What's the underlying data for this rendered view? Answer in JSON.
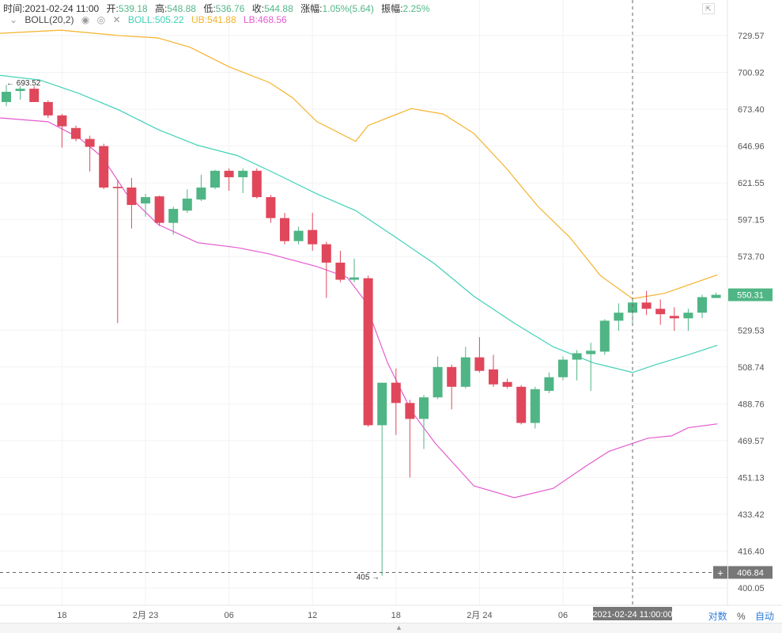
{
  "header": {
    "time_label": "时间:",
    "time": "2021-02-24 11:00",
    "open_label": "开:",
    "open": "539.18",
    "high_label": "高:",
    "high": "548.88",
    "low_label": "低:",
    "low": "536.76",
    "close_label": "收:",
    "close": "544.88",
    "change_label": "涨幅:",
    "change": "1.05%(5.64)",
    "amp_label": "振幅:",
    "amp": "2.25%"
  },
  "indicator": {
    "name": "BOLL(20,2)",
    "boll": "BOLL:505.22",
    "ub": "UB:541.88",
    "lb": "LB:468.56",
    "icons": [
      "chevron-down-icon",
      "eye-icon",
      "settings-icon",
      "close-icon"
    ]
  },
  "bottom_options": {
    "log": "对数",
    "percent": "%",
    "auto": "自动"
  },
  "colors": {
    "up": "#4fb585",
    "down": "#e0475b",
    "boll": "#3fd1b5",
    "ub": "#f5b22a",
    "lb": "#e45bd0"
  },
  "chart_data": {
    "type": "candlestick",
    "y_scale": "log",
    "ylim": [
      400.05,
      729.57
    ],
    "y_ticks": [
      "729.57",
      "700.92",
      "673.40",
      "646.96",
      "621.55",
      "597.15",
      "573.70",
      "529.53",
      "508.74",
      "488.76",
      "469.57",
      "451.13",
      "433.42",
      "416.40",
      "400.05"
    ],
    "x_ticks": [
      {
        "index": 4,
        "label": "18"
      },
      {
        "index": 10,
        "label": "2月 23"
      },
      {
        "index": 16,
        "label": "06"
      },
      {
        "index": 22,
        "label": "12"
      },
      {
        "index": 28,
        "label": "18"
      },
      {
        "index": 34,
        "label": "2月 24"
      },
      {
        "index": 40,
        "label": "06"
      }
    ],
    "crosshair": {
      "index": 45,
      "time_label": "2021-02-24 11:00:00",
      "price": 406.84,
      "price_label": "406.84",
      "plus": "+"
    },
    "last_price": {
      "value": 550.31,
      "label": "550.31"
    },
    "max_marker": {
      "index": 0,
      "value": 693.52,
      "label": "← 693.52"
    },
    "min_marker": {
      "index": 27,
      "value": 405,
      "label": "405 →"
    },
    "candles": [
      [
        678.7,
        691.5,
        675.7,
        686.3
      ],
      [
        686.9,
        690.4,
        680.4,
        688.6
      ],
      [
        688.6,
        690.4,
        678.7,
        678.7
      ],
      [
        678.7,
        680,
        667,
        668.9
      ],
      [
        668.9,
        670,
        645.9,
        661.0
      ],
      [
        659.8,
        661.5,
        650.3,
        652.0
      ],
      [
        652.0,
        654.3,
        629.3,
        646.4
      ],
      [
        646.96,
        648.6,
        617.3,
        618.4
      ],
      [
        618.9,
        623.8,
        533.6,
        618.0
      ],
      [
        618.4,
        624.9,
        591.5,
        606.8
      ],
      [
        607.8,
        614.2,
        599.2,
        612.0
      ],
      [
        612.5,
        613.0,
        593.1,
        595.1
      ],
      [
        595.1,
        605.7,
        587.5,
        604.2
      ],
      [
        603.1,
        617.3,
        601.6,
        611.0
      ],
      [
        610.4,
        627.1,
        609.4,
        618.4
      ],
      [
        618.4,
        630.4,
        617.3,
        629.8
      ],
      [
        629.8,
        631.4,
        616.3,
        625.4
      ],
      [
        625.4,
        631.4,
        614.7,
        629.8
      ],
      [
        629.8,
        631.4,
        611.0,
        612.0
      ],
      [
        612.0,
        613.5,
        595.1,
        598.2
      ],
      [
        598.2,
        601.6,
        581.4,
        583.4
      ],
      [
        583.4,
        592.6,
        581.4,
        590.0
      ],
      [
        590.5,
        601.6,
        577.3,
        581.4
      ],
      [
        581.4,
        583,
        548.4,
        569.9
      ],
      [
        569.9,
        577.3,
        557.9,
        559.4
      ],
      [
        559.4,
        572.3,
        557.9,
        560.8
      ],
      [
        560.3,
        561.8,
        476.7,
        477.5
      ],
      [
        477.5,
        500.1,
        405.4,
        500.1
      ],
      [
        500.1,
        507.9,
        472.5,
        489.2
      ],
      [
        489.2,
        490.9,
        451.1,
        480.8
      ],
      [
        480.8,
        493.5,
        465.3,
        492.2
      ],
      [
        492.2,
        514.6,
        491.3,
        508.7
      ],
      [
        508.7,
        510.1,
        485.8,
        497.9
      ],
      [
        497.9,
        520.0,
        497.0,
        514.1
      ],
      [
        514.1,
        525.5,
        505.7,
        506.6
      ],
      [
        507.4,
        515.5,
        497.9,
        499.2
      ],
      [
        500.5,
        502.3,
        497.0,
        497.9
      ],
      [
        497.9,
        498.8,
        477.9,
        478.7
      ],
      [
        478.7,
        497.9,
        475.8,
        496.6
      ],
      [
        495.7,
        505.7,
        494.4,
        503.1
      ],
      [
        503.1,
        514.6,
        501.4,
        512.8
      ],
      [
        512.8,
        518.2,
        501.4,
        516.4
      ],
      [
        515.9,
        522.3,
        495.7,
        517.8
      ],
      [
        517.3,
        535.9,
        515.5,
        535.0
      ],
      [
        535.0,
        545.2,
        529.1,
        539.7
      ],
      [
        539.7,
        547.5,
        533.6,
        545.7
      ],
      [
        545.7,
        552.7,
        538.3,
        542.0
      ],
      [
        542.0,
        547.5,
        532.7,
        538.8
      ],
      [
        537.8,
        542.9,
        529.1,
        536.4
      ],
      [
        536.4,
        542.0,
        529.1,
        539.7
      ],
      [
        539.7,
        550.3,
        536.4,
        548.9
      ],
      [
        548.4,
        551.6,
        548.4,
        550.3
      ]
    ],
    "series": [
      {
        "name": "UB",
        "points": [
          [
            -0.45,
            731.4
          ],
          [
            3.9,
            733.9
          ],
          [
            8.1,
            729.6
          ],
          [
            10.9,
            727.7
          ],
          [
            13.2,
            720.4
          ],
          [
            16.0,
            705.2
          ],
          [
            18.9,
            693.3
          ],
          [
            20.6,
            681.6
          ],
          [
            22.3,
            664.5
          ],
          [
            25.1,
            650.3
          ],
          [
            26.0,
            661.6
          ],
          [
            29.1,
            673.9
          ],
          [
            31.4,
            669.9
          ],
          [
            33.6,
            655.9
          ],
          [
            35.9,
            631.8
          ],
          [
            38.2,
            605.9
          ],
          [
            40.5,
            585.7
          ],
          [
            42.7,
            561.8
          ],
          [
            45.0,
            548.0
          ],
          [
            47.3,
            551.2
          ],
          [
            51.1,
            562.4
          ]
        ]
      },
      {
        "name": "BOLL",
        "points": [
          [
            -0.45,
            698.7
          ],
          [
            2.4,
            695.2
          ],
          [
            5.2,
            685.2
          ],
          [
            8.1,
            672.8
          ],
          [
            10.9,
            658.7
          ],
          [
            13.75,
            647.5
          ],
          [
            16.6,
            640.3
          ],
          [
            19.4,
            627.6
          ],
          [
            22.3,
            614.2
          ],
          [
            25.1,
            603.1
          ],
          [
            28.0,
            585.7
          ],
          [
            30.8,
            569.0
          ],
          [
            33.6,
            549.4
          ],
          [
            36.5,
            533.6
          ],
          [
            39.3,
            520.0
          ],
          [
            42.2,
            511.0
          ],
          [
            45.0,
            505.7
          ],
          [
            46.7,
            510.1
          ],
          [
            49.0,
            515.5
          ],
          [
            51.1,
            520.9
          ]
        ]
      },
      {
        "name": "LB",
        "points": [
          [
            -0.45,
            667.1
          ],
          [
            3.0,
            664.3
          ],
          [
            5.2,
            653.0
          ],
          [
            6.9,
            639.2
          ],
          [
            8.6,
            614.7
          ],
          [
            10.9,
            594.1
          ],
          [
            13.75,
            582.4
          ],
          [
            16.6,
            579.3
          ],
          [
            18.9,
            575.3
          ],
          [
            22.3,
            567.5
          ],
          [
            24.5,
            560.8
          ],
          [
            25.7,
            547.5
          ],
          [
            27.4,
            511.0
          ],
          [
            29.1,
            485.0
          ],
          [
            30.8,
            468.4
          ],
          [
            33.6,
            447.0
          ],
          [
            36.5,
            441.3
          ],
          [
            39.3,
            445.8
          ],
          [
            41.6,
            456.5
          ],
          [
            43.3,
            464.1
          ],
          [
            46.1,
            470.8
          ],
          [
            47.8,
            472.0
          ],
          [
            49.0,
            476.2
          ],
          [
            51.1,
            478.2
          ]
        ]
      }
    ]
  }
}
